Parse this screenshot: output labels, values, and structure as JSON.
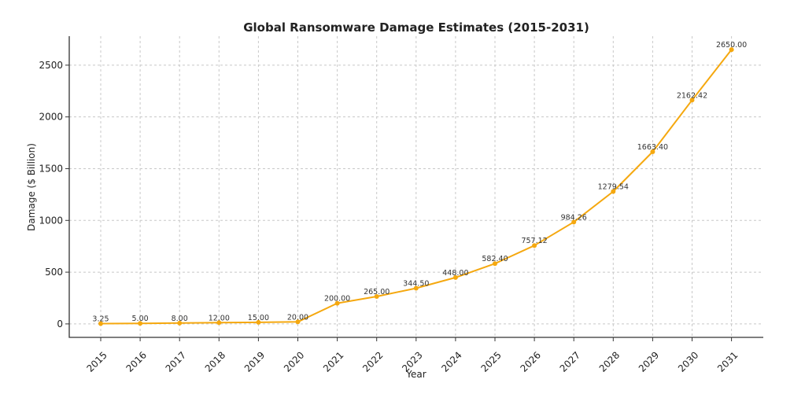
{
  "chart_data": {
    "type": "line",
    "title": "Global Ransomware Damage Estimates (2015-2031)",
    "xlabel": "Year",
    "ylabel": "Damage ($ Billion)",
    "categories": [
      "2015",
      "2016",
      "2017",
      "2018",
      "2019",
      "2020",
      "2021",
      "2022",
      "2023",
      "2024",
      "2025",
      "2026",
      "2027",
      "2028",
      "2029",
      "2030",
      "2031"
    ],
    "series": [
      {
        "name": "Damage",
        "values": [
          3.25,
          5.0,
          8.0,
          12.0,
          15.0,
          20.0,
          200.0,
          265.0,
          344.5,
          448.0,
          582.4,
          757.12,
          984.26,
          1279.54,
          1663.4,
          2162.42,
          2650.0
        ],
        "labels": [
          "3.25",
          "5.00",
          "8.00",
          "12.00",
          "15.00",
          "20.00",
          "200.00",
          "265.00",
          "344.50",
          "448.00",
          "582.40",
          "757.12",
          "984.26",
          "1279.54",
          "1663.40",
          "2162.42",
          "2650.00"
        ],
        "color": "#f5a80f"
      }
    ],
    "ylim": [
      -130,
      2780
    ],
    "yticks": [
      0,
      500,
      1000,
      1500,
      2000,
      2500
    ],
    "ytick_labels": [
      "0",
      "500",
      "1000",
      "1500",
      "2000",
      "2500"
    ],
    "grid": true,
    "legend": "none"
  }
}
